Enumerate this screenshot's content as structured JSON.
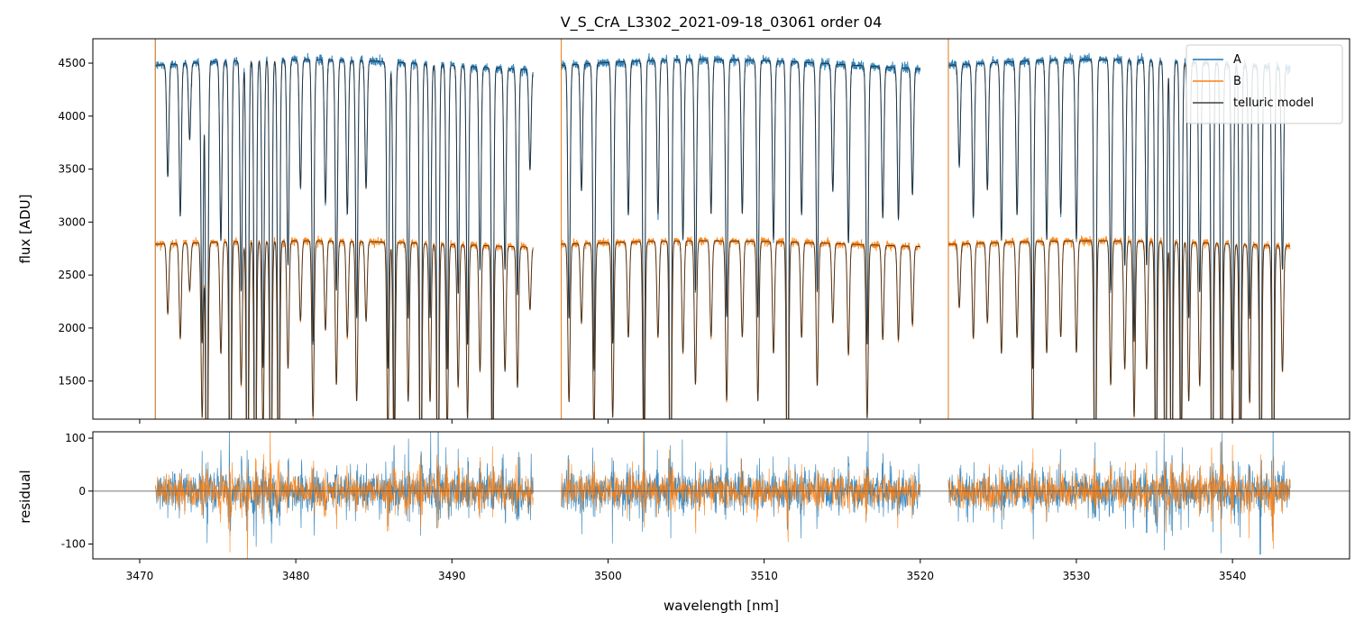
{
  "chart_data": [
    {
      "type": "line",
      "title": "V_S_CrA_L3302_2021-09-18_03061  order 04",
      "xlabel": "",
      "ylabel": "flux [ADU]",
      "xlim": [
        3467.0,
        3547.5
      ],
      "ylim": [
        1140,
        4730
      ],
      "yticks": [
        1500,
        2000,
        2500,
        3000,
        3500,
        4000,
        4500
      ],
      "xticks": [
        3470,
        3480,
        3490,
        3500,
        3510,
        3520,
        3530,
        3540
      ],
      "legend": {
        "placement": "top-right",
        "entries": [
          "A",
          "B",
          "telluric model"
        ]
      },
      "segments": [
        [
          3471.0,
          3495.2
        ],
        [
          3497.0,
          3520.0
        ],
        [
          3521.8,
          3543.7
        ]
      ],
      "series": [
        {
          "name": "A",
          "color": "#1f77b4",
          "continuum": 4480,
          "line_depth_frac": 0.93
        },
        {
          "name": "B",
          "color": "#ff7f0e",
          "continuum": 2790,
          "line_depth_frac": 0.93
        },
        {
          "name": "telluric model",
          "color": "#404040"
        }
      ],
      "absorption_lines": [
        {
          "x": 3471.8,
          "depth": 0.22
        },
        {
          "x": 3472.6,
          "depth": 0.3
        },
        {
          "x": 3473.2,
          "depth": 0.15
        },
        {
          "x": 3474.0,
          "depth": 0.55
        },
        {
          "x": 3474.3,
          "depth": 1.0
        },
        {
          "x": 3475.2,
          "depth": 0.35
        },
        {
          "x": 3475.8,
          "depth": 1.0
        },
        {
          "x": 3476.5,
          "depth": 0.45
        },
        {
          "x": 3476.9,
          "depth": 1.0
        },
        {
          "x": 3477.4,
          "depth": 1.0
        },
        {
          "x": 3477.9,
          "depth": 0.6
        },
        {
          "x": 3478.4,
          "depth": 1.0
        },
        {
          "x": 3478.9,
          "depth": 0.9
        },
        {
          "x": 3479.5,
          "depth": 0.4
        },
        {
          "x": 3480.3,
          "depth": 0.25
        },
        {
          "x": 3481.1,
          "depth": 0.55
        },
        {
          "x": 3481.9,
          "depth": 0.28
        },
        {
          "x": 3482.6,
          "depth": 0.45
        },
        {
          "x": 3483.3,
          "depth": 0.3
        },
        {
          "x": 3483.9,
          "depth": 0.5
        },
        {
          "x": 3484.5,
          "depth": 0.25
        },
        {
          "x": 3485.9,
          "depth": 0.6
        },
        {
          "x": 3486.3,
          "depth": 0.75
        },
        {
          "x": 3487.2,
          "depth": 0.5
        },
        {
          "x": 3488.0,
          "depth": 1.0
        },
        {
          "x": 3488.6,
          "depth": 0.5
        },
        {
          "x": 3489.1,
          "depth": 1.0
        },
        {
          "x": 3489.7,
          "depth": 0.6
        },
        {
          "x": 3490.4,
          "depth": 0.45
        },
        {
          "x": 3491.0,
          "depth": 0.55
        },
        {
          "x": 3491.8,
          "depth": 0.4
        },
        {
          "x": 3492.6,
          "depth": 0.8
        },
        {
          "x": 3493.4,
          "depth": 0.4
        },
        {
          "x": 3494.2,
          "depth": 0.45
        },
        {
          "x": 3495.0,
          "depth": 0.2
        },
        {
          "x": 3497.5,
          "depth": 0.5
        },
        {
          "x": 3498.3,
          "depth": 0.25
        },
        {
          "x": 3499.1,
          "depth": 0.6
        },
        {
          "x": 3500.3,
          "depth": 0.55
        },
        {
          "x": 3501.3,
          "depth": 0.3
        },
        {
          "x": 3502.3,
          "depth": 0.75
        },
        {
          "x": 3503.2,
          "depth": 0.3
        },
        {
          "x": 3504.0,
          "depth": 1.0
        },
        {
          "x": 3504.8,
          "depth": 0.35
        },
        {
          "x": 3505.6,
          "depth": 0.45
        },
        {
          "x": 3506.6,
          "depth": 0.3
        },
        {
          "x": 3507.6,
          "depth": 0.5
        },
        {
          "x": 3508.6,
          "depth": 0.3
        },
        {
          "x": 3509.6,
          "depth": 0.5
        },
        {
          "x": 3510.6,
          "depth": 0.35
        },
        {
          "x": 3511.5,
          "depth": 1.0
        },
        {
          "x": 3512.4,
          "depth": 0.3
        },
        {
          "x": 3513.4,
          "depth": 0.45
        },
        {
          "x": 3514.4,
          "depth": 0.25
        },
        {
          "x": 3515.4,
          "depth": 0.35
        },
        {
          "x": 3516.6,
          "depth": 0.55
        },
        {
          "x": 3517.6,
          "depth": 0.3
        },
        {
          "x": 3518.6,
          "depth": 0.3
        },
        {
          "x": 3519.5,
          "depth": 0.25
        },
        {
          "x": 3522.5,
          "depth": 0.2
        },
        {
          "x": 3523.4,
          "depth": 0.3
        },
        {
          "x": 3524.3,
          "depth": 0.25
        },
        {
          "x": 3525.2,
          "depth": 0.35
        },
        {
          "x": 3526.2,
          "depth": 0.3
        },
        {
          "x": 3527.2,
          "depth": 0.6
        },
        {
          "x": 3528.1,
          "depth": 0.35
        },
        {
          "x": 3529.0,
          "depth": 0.3
        },
        {
          "x": 3530.0,
          "depth": 0.35
        },
        {
          "x": 3531.2,
          "depth": 1.0
        },
        {
          "x": 3532.2,
          "depth": 0.45
        },
        {
          "x": 3533.1,
          "depth": 0.4
        },
        {
          "x": 3533.7,
          "depth": 0.55
        },
        {
          "x": 3534.5,
          "depth": 0.4
        },
        {
          "x": 3535.1,
          "depth": 0.9
        },
        {
          "x": 3535.7,
          "depth": 1.0
        },
        {
          "x": 3536.1,
          "depth": 1.0
        },
        {
          "x": 3536.7,
          "depth": 0.8
        },
        {
          "x": 3537.2,
          "depth": 0.5
        },
        {
          "x": 3537.9,
          "depth": 0.45
        },
        {
          "x": 3538.7,
          "depth": 1.0
        },
        {
          "x": 3539.3,
          "depth": 0.9
        },
        {
          "x": 3540.0,
          "depth": 0.6
        },
        {
          "x": 3540.5,
          "depth": 0.8
        },
        {
          "x": 3541.1,
          "depth": 0.5
        },
        {
          "x": 3541.8,
          "depth": 1.0
        },
        {
          "x": 3542.6,
          "depth": 1.0
        },
        {
          "x": 3543.2,
          "depth": 0.4
        }
      ]
    },
    {
      "type": "line",
      "title": "",
      "xlabel": "wavelength [nm]",
      "ylabel": "residual",
      "xlim": [
        3467.0,
        3547.5
      ],
      "ylim": [
        -128,
        112
      ],
      "yticks": [
        -100,
        0,
        100
      ],
      "xticks": [
        3470,
        3480,
        3490,
        3500,
        3510,
        3520,
        3530,
        3540
      ],
      "zero_line": 0,
      "series": [
        {
          "name": "A",
          "color": "#1f77b4",
          "noise_amplitude": 60
        },
        {
          "name": "B",
          "color": "#ff7f0e",
          "noise_amplitude": 48
        }
      ]
    }
  ]
}
